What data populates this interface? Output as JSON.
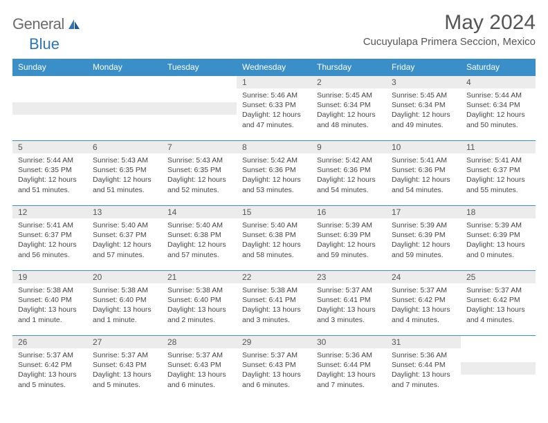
{
  "logo": {
    "word1": "General",
    "word2": "Blue"
  },
  "title": "May 2024",
  "location": "Cucuyulapa Primera Seccion, Mexico",
  "colors": {
    "header_bg": "#3a8fc8",
    "header_text": "#ffffff",
    "daynum_bg": "#ececec",
    "border": "#3a8fc8",
    "logo_gray": "#6b6b6b",
    "logo_blue": "#2d74b8"
  },
  "weekdays": [
    "Sunday",
    "Monday",
    "Tuesday",
    "Wednesday",
    "Thursday",
    "Friday",
    "Saturday"
  ],
  "weeks": [
    [
      {
        "day": null
      },
      {
        "day": null
      },
      {
        "day": null
      },
      {
        "day": 1,
        "sunrise": "Sunrise: 5:46 AM",
        "sunset": "Sunset: 6:33 PM",
        "daylight1": "Daylight: 12 hours",
        "daylight2": "and 47 minutes."
      },
      {
        "day": 2,
        "sunrise": "Sunrise: 5:45 AM",
        "sunset": "Sunset: 6:34 PM",
        "daylight1": "Daylight: 12 hours",
        "daylight2": "and 48 minutes."
      },
      {
        "day": 3,
        "sunrise": "Sunrise: 5:45 AM",
        "sunset": "Sunset: 6:34 PM",
        "daylight1": "Daylight: 12 hours",
        "daylight2": "and 49 minutes."
      },
      {
        "day": 4,
        "sunrise": "Sunrise: 5:44 AM",
        "sunset": "Sunset: 6:34 PM",
        "daylight1": "Daylight: 12 hours",
        "daylight2": "and 50 minutes."
      }
    ],
    [
      {
        "day": 5,
        "sunrise": "Sunrise: 5:44 AM",
        "sunset": "Sunset: 6:35 PM",
        "daylight1": "Daylight: 12 hours",
        "daylight2": "and 51 minutes."
      },
      {
        "day": 6,
        "sunrise": "Sunrise: 5:43 AM",
        "sunset": "Sunset: 6:35 PM",
        "daylight1": "Daylight: 12 hours",
        "daylight2": "and 51 minutes."
      },
      {
        "day": 7,
        "sunrise": "Sunrise: 5:43 AM",
        "sunset": "Sunset: 6:35 PM",
        "daylight1": "Daylight: 12 hours",
        "daylight2": "and 52 minutes."
      },
      {
        "day": 8,
        "sunrise": "Sunrise: 5:42 AM",
        "sunset": "Sunset: 6:36 PM",
        "daylight1": "Daylight: 12 hours",
        "daylight2": "and 53 minutes."
      },
      {
        "day": 9,
        "sunrise": "Sunrise: 5:42 AM",
        "sunset": "Sunset: 6:36 PM",
        "daylight1": "Daylight: 12 hours",
        "daylight2": "and 54 minutes."
      },
      {
        "day": 10,
        "sunrise": "Sunrise: 5:41 AM",
        "sunset": "Sunset: 6:36 PM",
        "daylight1": "Daylight: 12 hours",
        "daylight2": "and 54 minutes."
      },
      {
        "day": 11,
        "sunrise": "Sunrise: 5:41 AM",
        "sunset": "Sunset: 6:37 PM",
        "daylight1": "Daylight: 12 hours",
        "daylight2": "and 55 minutes."
      }
    ],
    [
      {
        "day": 12,
        "sunrise": "Sunrise: 5:41 AM",
        "sunset": "Sunset: 6:37 PM",
        "daylight1": "Daylight: 12 hours",
        "daylight2": "and 56 minutes."
      },
      {
        "day": 13,
        "sunrise": "Sunrise: 5:40 AM",
        "sunset": "Sunset: 6:37 PM",
        "daylight1": "Daylight: 12 hours",
        "daylight2": "and 57 minutes."
      },
      {
        "day": 14,
        "sunrise": "Sunrise: 5:40 AM",
        "sunset": "Sunset: 6:38 PM",
        "daylight1": "Daylight: 12 hours",
        "daylight2": "and 57 minutes."
      },
      {
        "day": 15,
        "sunrise": "Sunrise: 5:40 AM",
        "sunset": "Sunset: 6:38 PM",
        "daylight1": "Daylight: 12 hours",
        "daylight2": "and 58 minutes."
      },
      {
        "day": 16,
        "sunrise": "Sunrise: 5:39 AM",
        "sunset": "Sunset: 6:39 PM",
        "daylight1": "Daylight: 12 hours",
        "daylight2": "and 59 minutes."
      },
      {
        "day": 17,
        "sunrise": "Sunrise: 5:39 AM",
        "sunset": "Sunset: 6:39 PM",
        "daylight1": "Daylight: 12 hours",
        "daylight2": "and 59 minutes."
      },
      {
        "day": 18,
        "sunrise": "Sunrise: 5:39 AM",
        "sunset": "Sunset: 6:39 PM",
        "daylight1": "Daylight: 13 hours",
        "daylight2": "and 0 minutes."
      }
    ],
    [
      {
        "day": 19,
        "sunrise": "Sunrise: 5:38 AM",
        "sunset": "Sunset: 6:40 PM",
        "daylight1": "Daylight: 13 hours",
        "daylight2": "and 1 minute."
      },
      {
        "day": 20,
        "sunrise": "Sunrise: 5:38 AM",
        "sunset": "Sunset: 6:40 PM",
        "daylight1": "Daylight: 13 hours",
        "daylight2": "and 1 minute."
      },
      {
        "day": 21,
        "sunrise": "Sunrise: 5:38 AM",
        "sunset": "Sunset: 6:40 PM",
        "daylight1": "Daylight: 13 hours",
        "daylight2": "and 2 minutes."
      },
      {
        "day": 22,
        "sunrise": "Sunrise: 5:38 AM",
        "sunset": "Sunset: 6:41 PM",
        "daylight1": "Daylight: 13 hours",
        "daylight2": "and 3 minutes."
      },
      {
        "day": 23,
        "sunrise": "Sunrise: 5:37 AM",
        "sunset": "Sunset: 6:41 PM",
        "daylight1": "Daylight: 13 hours",
        "daylight2": "and 3 minutes."
      },
      {
        "day": 24,
        "sunrise": "Sunrise: 5:37 AM",
        "sunset": "Sunset: 6:42 PM",
        "daylight1": "Daylight: 13 hours",
        "daylight2": "and 4 minutes."
      },
      {
        "day": 25,
        "sunrise": "Sunrise: 5:37 AM",
        "sunset": "Sunset: 6:42 PM",
        "daylight1": "Daylight: 13 hours",
        "daylight2": "and 4 minutes."
      }
    ],
    [
      {
        "day": 26,
        "sunrise": "Sunrise: 5:37 AM",
        "sunset": "Sunset: 6:42 PM",
        "daylight1": "Daylight: 13 hours",
        "daylight2": "and 5 minutes."
      },
      {
        "day": 27,
        "sunrise": "Sunrise: 5:37 AM",
        "sunset": "Sunset: 6:43 PM",
        "daylight1": "Daylight: 13 hours",
        "daylight2": "and 5 minutes."
      },
      {
        "day": 28,
        "sunrise": "Sunrise: 5:37 AM",
        "sunset": "Sunset: 6:43 PM",
        "daylight1": "Daylight: 13 hours",
        "daylight2": "and 6 minutes."
      },
      {
        "day": 29,
        "sunrise": "Sunrise: 5:37 AM",
        "sunset": "Sunset: 6:43 PM",
        "daylight1": "Daylight: 13 hours",
        "daylight2": "and 6 minutes."
      },
      {
        "day": 30,
        "sunrise": "Sunrise: 5:36 AM",
        "sunset": "Sunset: 6:44 PM",
        "daylight1": "Daylight: 13 hours",
        "daylight2": "and 7 minutes."
      },
      {
        "day": 31,
        "sunrise": "Sunrise: 5:36 AM",
        "sunset": "Sunset: 6:44 PM",
        "daylight1": "Daylight: 13 hours",
        "daylight2": "and 7 minutes."
      },
      {
        "day": null
      }
    ]
  ]
}
